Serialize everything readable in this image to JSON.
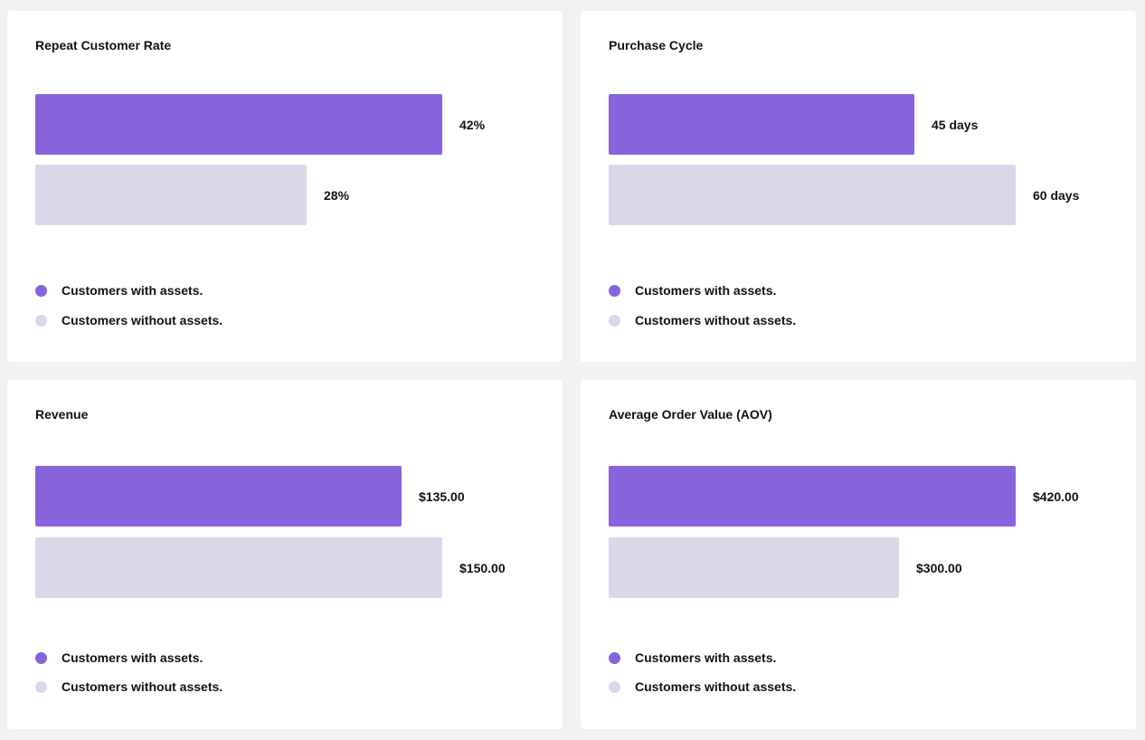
{
  "colors": {
    "with_assets": "#8963dc",
    "without_assets": "#dcd6ea"
  },
  "legend": {
    "with_label": "Customers with assets.",
    "without_label": "Customers without assets."
  },
  "chart_data": [
    {
      "type": "bar",
      "orientation": "horizontal",
      "title": "Repeat Customer Rate",
      "categories": [
        "Customers with assets.",
        "Customers without assets."
      ],
      "values": [
        42,
        28
      ],
      "labels": [
        "42%",
        "28%"
      ],
      "unit": "%"
    },
    {
      "type": "bar",
      "orientation": "horizontal",
      "title": "Purchase Cycle",
      "categories": [
        "Customers with assets.",
        "Customers without assets."
      ],
      "values": [
        45,
        60
      ],
      "labels": [
        "45 days",
        "60 days"
      ],
      "unit": "days"
    },
    {
      "type": "bar",
      "orientation": "horizontal",
      "title": "Revenue",
      "categories": [
        "Customers with assets.",
        "Customers without assets."
      ],
      "values": [
        135,
        150
      ],
      "labels": [
        "$135.00",
        "$150.00"
      ],
      "unit": "$"
    },
    {
      "type": "bar",
      "orientation": "horizontal",
      "title": "Average Order Value (AOV)",
      "categories": [
        "Customers with assets.",
        "Customers without assets."
      ],
      "values": [
        420,
        300
      ],
      "labels": [
        "$420.00",
        "$300.00"
      ],
      "unit": "$"
    }
  ]
}
